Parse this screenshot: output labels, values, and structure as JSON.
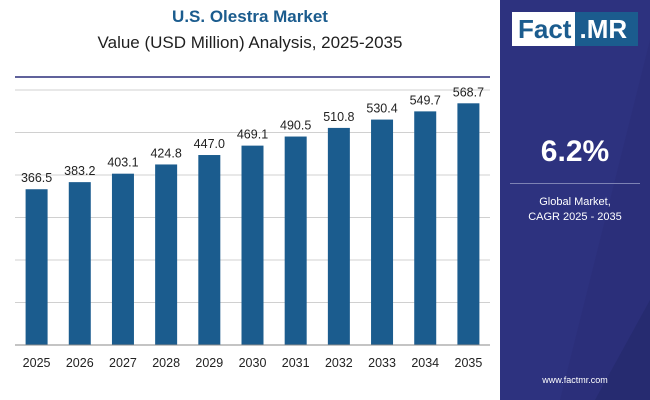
{
  "chart_data": {
    "type": "bar",
    "title": "U.S. Olestra Market",
    "subtitle": "Value (USD Million) Analysis, 2025-2035",
    "categories": [
      "2025",
      "2026",
      "2027",
      "2028",
      "2029",
      "2030",
      "2031",
      "2032",
      "2033",
      "2034",
      "2035"
    ],
    "values": [
      366.5,
      383.2,
      403.1,
      424.8,
      447.0,
      469.1,
      490.5,
      510.8,
      530.4,
      549.7,
      568.7
    ],
    "value_labels": [
      "366.5",
      "383.2",
      "403.1",
      "424.8",
      "447.0",
      "469.1",
      "490.5",
      "510.8",
      "530.4",
      "549.7",
      "568.7"
    ],
    "ylim": [
      0,
      600
    ],
    "grid": true,
    "bar_color": "#1b5c8e"
  },
  "brand": {
    "logo_left": "Fact",
    "logo_right": ".MR",
    "website": "www.factmr.com"
  },
  "cagr": {
    "value": "6.2%",
    "label_line1": "Global Market,",
    "label_line2": "CAGR 2025 - 2035"
  },
  "colors": {
    "panel": "#2b2f7a",
    "accent": "#1b5c8e",
    "grid": "#d0d0d0",
    "top_rule": "#2b2f7a"
  }
}
